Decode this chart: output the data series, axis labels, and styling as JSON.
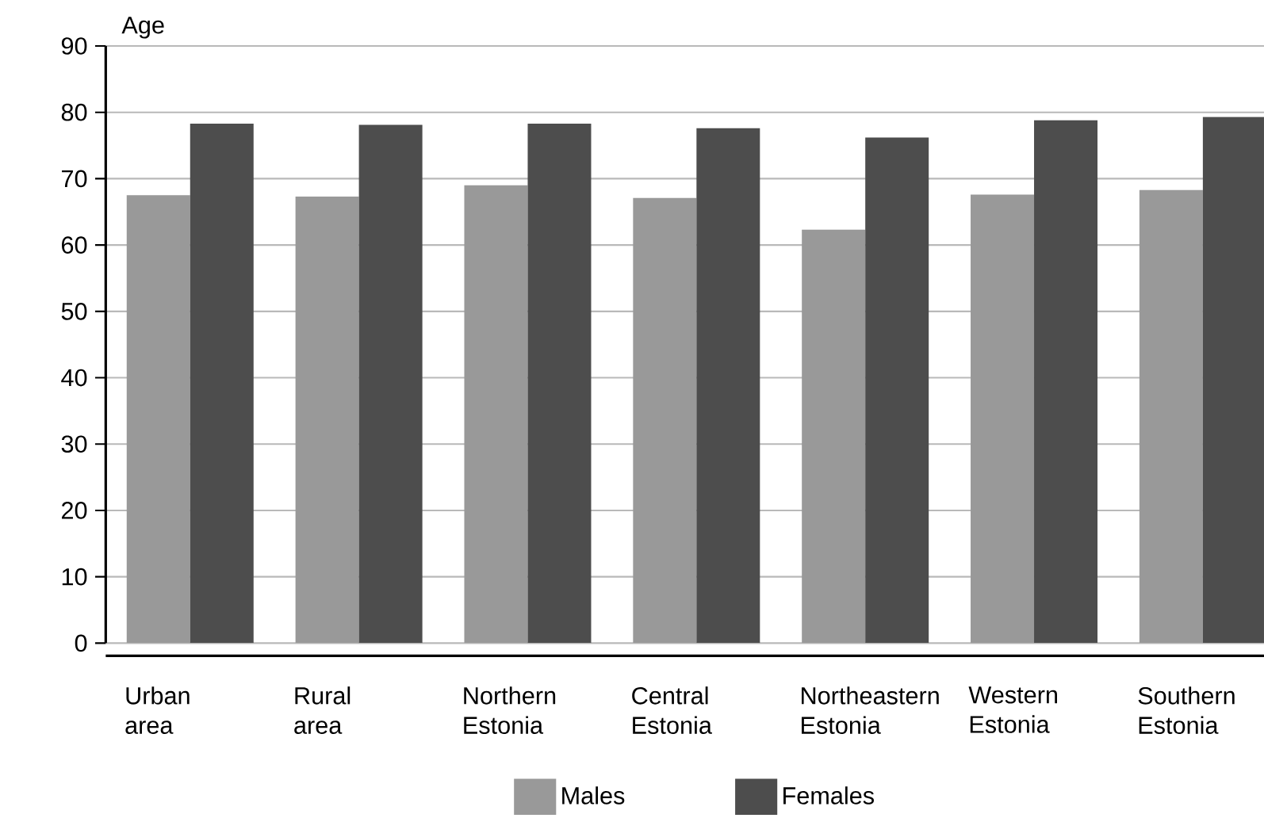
{
  "chart_data": {
    "type": "bar",
    "ylabel": "Age",
    "categories": [
      "Urban area",
      "Rural area",
      "Northern Estonia",
      "Central Estonia",
      "Northeastern Estonia",
      "Western Estonia",
      "Southern Estonia"
    ],
    "series": [
      {
        "name": "Males",
        "color": "#999999",
        "values": [
          67.5,
          67.3,
          69.0,
          67.1,
          62.3,
          67.6,
          68.3
        ]
      },
      {
        "name": "Females",
        "color": "#4d4d4d",
        "values": [
          78.3,
          78.1,
          78.3,
          77.6,
          76.2,
          78.8,
          79.3
        ]
      }
    ],
    "ylim": [
      0,
      90
    ],
    "yticks": [
      0,
      10,
      20,
      30,
      40,
      50,
      60,
      70,
      80,
      90
    ],
    "grid": "y",
    "legend": "bottom"
  }
}
